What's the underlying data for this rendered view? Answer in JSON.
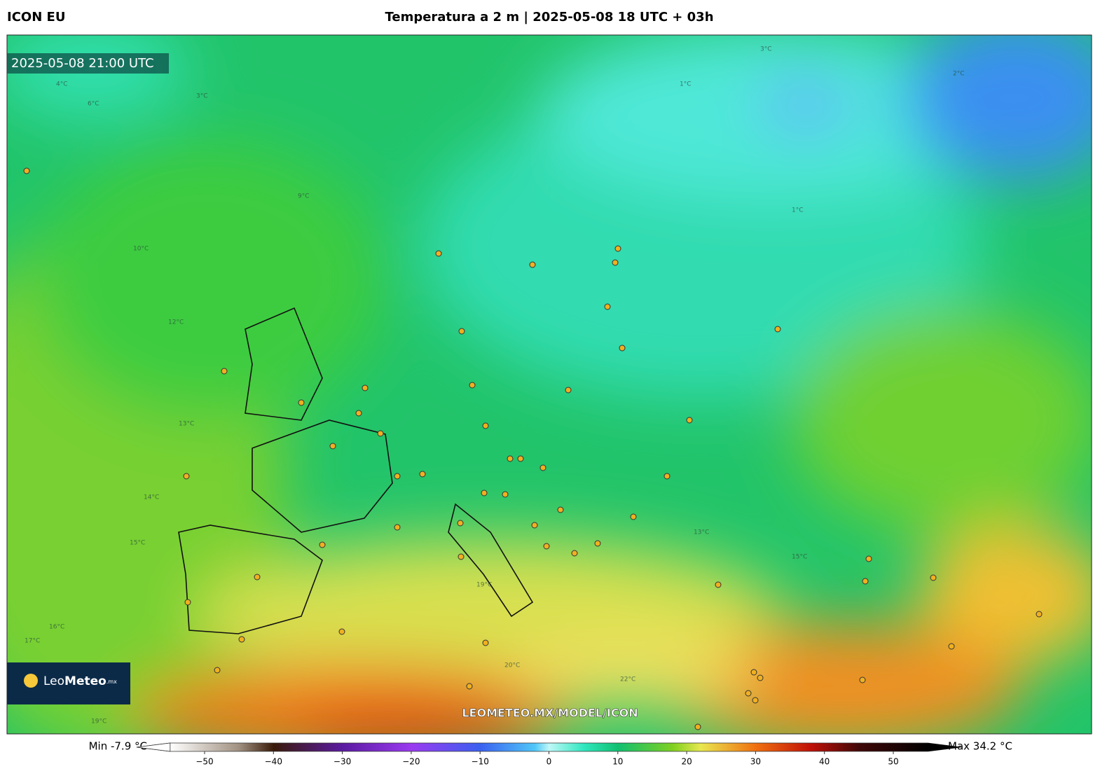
{
  "header": {
    "left": "ICON EU",
    "title": "Temperatura a 2 m | 2025-05-08 18 UTC + 03h"
  },
  "map": {
    "timestamp": "2025-05-08 21:00 UTC",
    "logo_parts": [
      "Leo",
      "Meteo",
      ".mx"
    ],
    "watermark": "LEOMETEO.MX/MODEL/ICON",
    "contour_labels": [
      "4°C",
      "6°C",
      "3°C",
      "9°C",
      "10°C",
      "12°C",
      "13°C",
      "14°C",
      "15°C",
      "16°C",
      "17°C",
      "19°C",
      "20°C",
      "22°C",
      "19°C",
      "1°C",
      "13°C",
      "15°C",
      "3°C",
      "2°C",
      "1°C"
    ]
  },
  "colorbar": {
    "min_label": "Min -7.9 °C",
    "max_label": "Max 34.2 °C",
    "ticks": [
      {
        "value": -50,
        "label": "−50"
      },
      {
        "value": -40,
        "label": "−40"
      },
      {
        "value": -30,
        "label": "−30"
      },
      {
        "value": -20,
        "label": "−20"
      },
      {
        "value": -10,
        "label": "−10"
      },
      0,
      10,
      20,
      30,
      40,
      50
    ],
    "stops": [
      {
        "value": -55,
        "color": "#ffffff"
      },
      {
        "value": -45,
        "color": "#a09080"
      },
      {
        "value": -40,
        "color": "#3a1a08"
      },
      {
        "value": -30,
        "color": "#5a1aa0"
      },
      {
        "value": -20,
        "color": "#9a3af0"
      },
      {
        "value": -10,
        "color": "#3a60f0"
      },
      {
        "value": -2,
        "color": "#50c8f8"
      },
      {
        "value": 0,
        "color": "#c0f8f8"
      },
      {
        "value": 5,
        "color": "#30e8c0"
      },
      {
        "value": 10,
        "color": "#10c070"
      },
      {
        "value": 18,
        "color": "#80d020"
      },
      {
        "value": 22,
        "color": "#e8e850"
      },
      {
        "value": 30,
        "color": "#f07010"
      },
      {
        "value": 38,
        "color": "#c01008"
      },
      {
        "value": 45,
        "color": "#400808"
      },
      {
        "value": 55,
        "color": "#000000"
      }
    ]
  }
}
